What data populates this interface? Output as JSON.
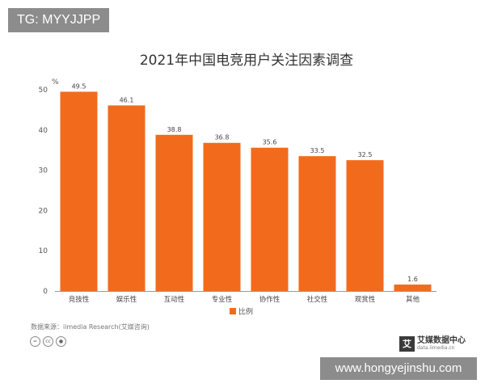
{
  "watermark_top": "TG: MYYJJPP",
  "watermark_bottom": "www.hongyejinshu.com",
  "source_text": "数据来源：iimedia Research(艾媒咨询)",
  "cc_icons": [
    "cc-by-icon",
    "cc-icon",
    "cc-person-icon"
  ],
  "logo": {
    "mark": "艾",
    "name": "艾媒数据中心",
    "url": "data.iimedia.cn"
  },
  "colors": {
    "bar": "#f26b1d",
    "text": "#333333",
    "axis": "#999999"
  },
  "chart_data": {
    "type": "bar",
    "title": "2021年中国电竞用户关注因素调查",
    "ylabel": "%",
    "xlabel": "",
    "ylim": [
      0,
      50
    ],
    "yticks": [
      0,
      10,
      20,
      30,
      40,
      50
    ],
    "grid": false,
    "legend_position": "bottom",
    "categories": [
      "竞技性",
      "娱乐性",
      "互动性",
      "专业性",
      "协作性",
      "社交性",
      "观赏性",
      "其他"
    ],
    "series": [
      {
        "name": "比例",
        "values": [
          49.5,
          46.1,
          38.8,
          36.8,
          35.6,
          33.5,
          32.5,
          1.6
        ]
      }
    ]
  }
}
